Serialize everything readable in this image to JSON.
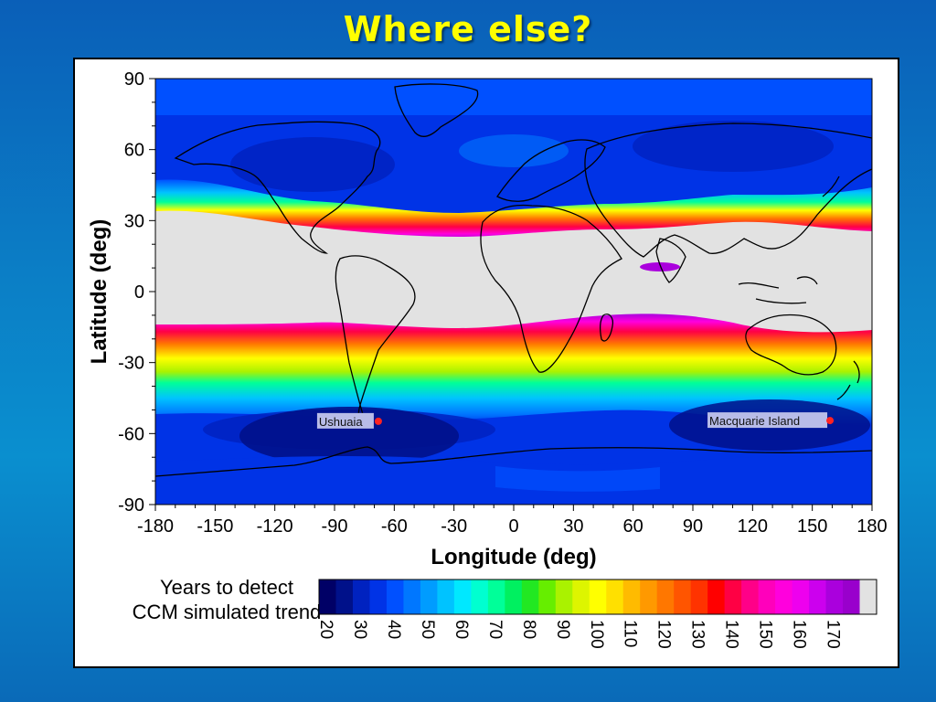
{
  "slide": {
    "title": "Where else?"
  },
  "chart_data": {
    "type": "heatmap",
    "title": "",
    "xlabel": "Longitude (deg)",
    "ylabel": "Latitude (deg)",
    "xlim": [
      -180,
      180
    ],
    "ylim": [
      -90,
      90
    ],
    "x_ticks": [
      -180,
      -150,
      -120,
      -90,
      -60,
      -30,
      0,
      30,
      60,
      90,
      120,
      150,
      180
    ],
    "y_ticks": [
      90,
      60,
      30,
      0,
      -30,
      -60,
      -90
    ],
    "grid": false,
    "colorbar": {
      "title_lines": [
        "Years to detect",
        "CCM simulated trend"
      ],
      "levels": [
        20,
        25,
        30,
        35,
        40,
        45,
        50,
        55,
        60,
        65,
        70,
        75,
        80,
        85,
        90,
        95,
        100,
        105,
        110,
        115,
        120,
        125,
        130,
        135,
        140,
        145,
        150,
        155,
        160,
        165,
        170,
        175
      ],
      "tick_labels": [
        "20",
        "30",
        "40",
        "50",
        "60",
        "70",
        "80",
        "90",
        "100",
        "110",
        "120",
        "130",
        "140",
        "150",
        "160",
        "170"
      ],
      "colors": [
        "#000066",
        "#00118a",
        "#0022c0",
        "#0033e6",
        "#0050ff",
        "#0077ff",
        "#009cff",
        "#00c3ff",
        "#00e8ff",
        "#00ffd0",
        "#00ff99",
        "#00f060",
        "#22e822",
        "#66ee00",
        "#aaf200",
        "#ddf500",
        "#ffff00",
        "#ffe000",
        "#ffbb00",
        "#ff9900",
        "#ff7700",
        "#ff5500",
        "#ff3300",
        "#ff0000",
        "#ff0044",
        "#ff0088",
        "#ff00bb",
        "#ff00dd",
        "#ee00ee",
        "#cc00ee",
        "#aa00dd",
        "#9900cc"
      ],
      "above_max_color": "#e2e2e2"
    },
    "annotations": [
      {
        "label": "Ushuaia",
        "lon": -68,
        "lat": -54.8
      },
      {
        "label": "Macquarie Island",
        "lon": 158.9,
        "lat": -54.5
      }
    ]
  }
}
